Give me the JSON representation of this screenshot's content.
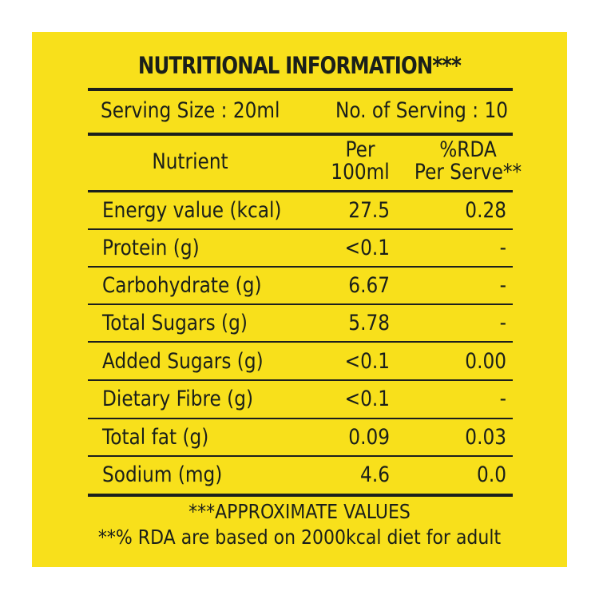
{
  "title": "NUTRITIONAL INFORMATION***",
  "serving": {
    "size": "Serving Size : 20ml",
    "count": "No. of Serving : 10"
  },
  "columns": {
    "nutrient": "Nutrient",
    "per100_line1": "Per",
    "per100_line2": "100ml",
    "rda_line1": "%RDA",
    "rda_line2": "Per Serve**"
  },
  "rows": [
    {
      "nutrient": "Energy value (kcal)",
      "per100": "27.5",
      "rda": "0.28"
    },
    {
      "nutrient": "Protein (g)",
      "per100": "<0.1",
      "rda": "-"
    },
    {
      "nutrient": "Carbohydrate (g)",
      "per100": "6.67",
      "rda": "-"
    },
    {
      "nutrient": "Total Sugars (g)",
      "per100": "5.78",
      "rda": "-"
    },
    {
      "nutrient": "Added Sugars (g)",
      "per100": "<0.1",
      "rda": "0.00"
    },
    {
      "nutrient": "Dietary Fibre (g)",
      "per100": "<0.1",
      "rda": "-"
    },
    {
      "nutrient": "Total fat (g)",
      "per100": "0.09",
      "rda": "0.03"
    },
    {
      "nutrient": "Sodium (mg)",
      "per100": "4.6",
      "rda": "0.0"
    }
  ],
  "footnotes": {
    "approx": "***APPROXIMATE VALUES",
    "rda": "**% RDA are based on 2000kcal diet for adult"
  },
  "colors": {
    "panel": "#f8e01b",
    "text": "#1a1f1a"
  }
}
